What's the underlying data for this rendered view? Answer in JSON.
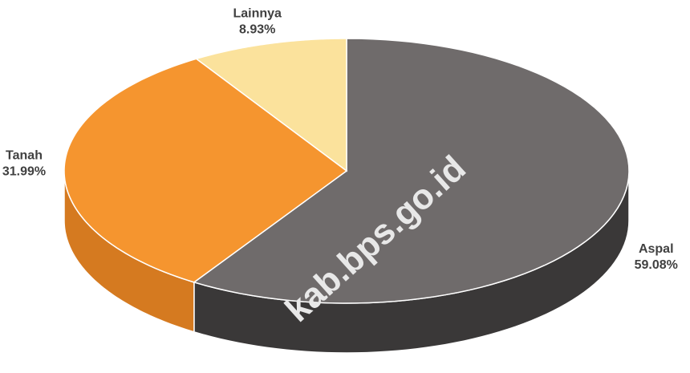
{
  "chart_data": {
    "type": "pie3d",
    "categories": [
      "Aspal",
      "Tanah",
      "Lainnya"
    ],
    "values": [
      59.08,
      31.99,
      8.93
    ],
    "value_labels": [
      "59.08%",
      "31.99%",
      "8.93%"
    ],
    "colors": [
      "#6f6b6b",
      "#f5952f",
      "#fbe29c"
    ],
    "side_colors": [
      "#3a3838",
      "#d57a20",
      "#e2c57f"
    ],
    "watermark": "kab.bps.go.id"
  }
}
